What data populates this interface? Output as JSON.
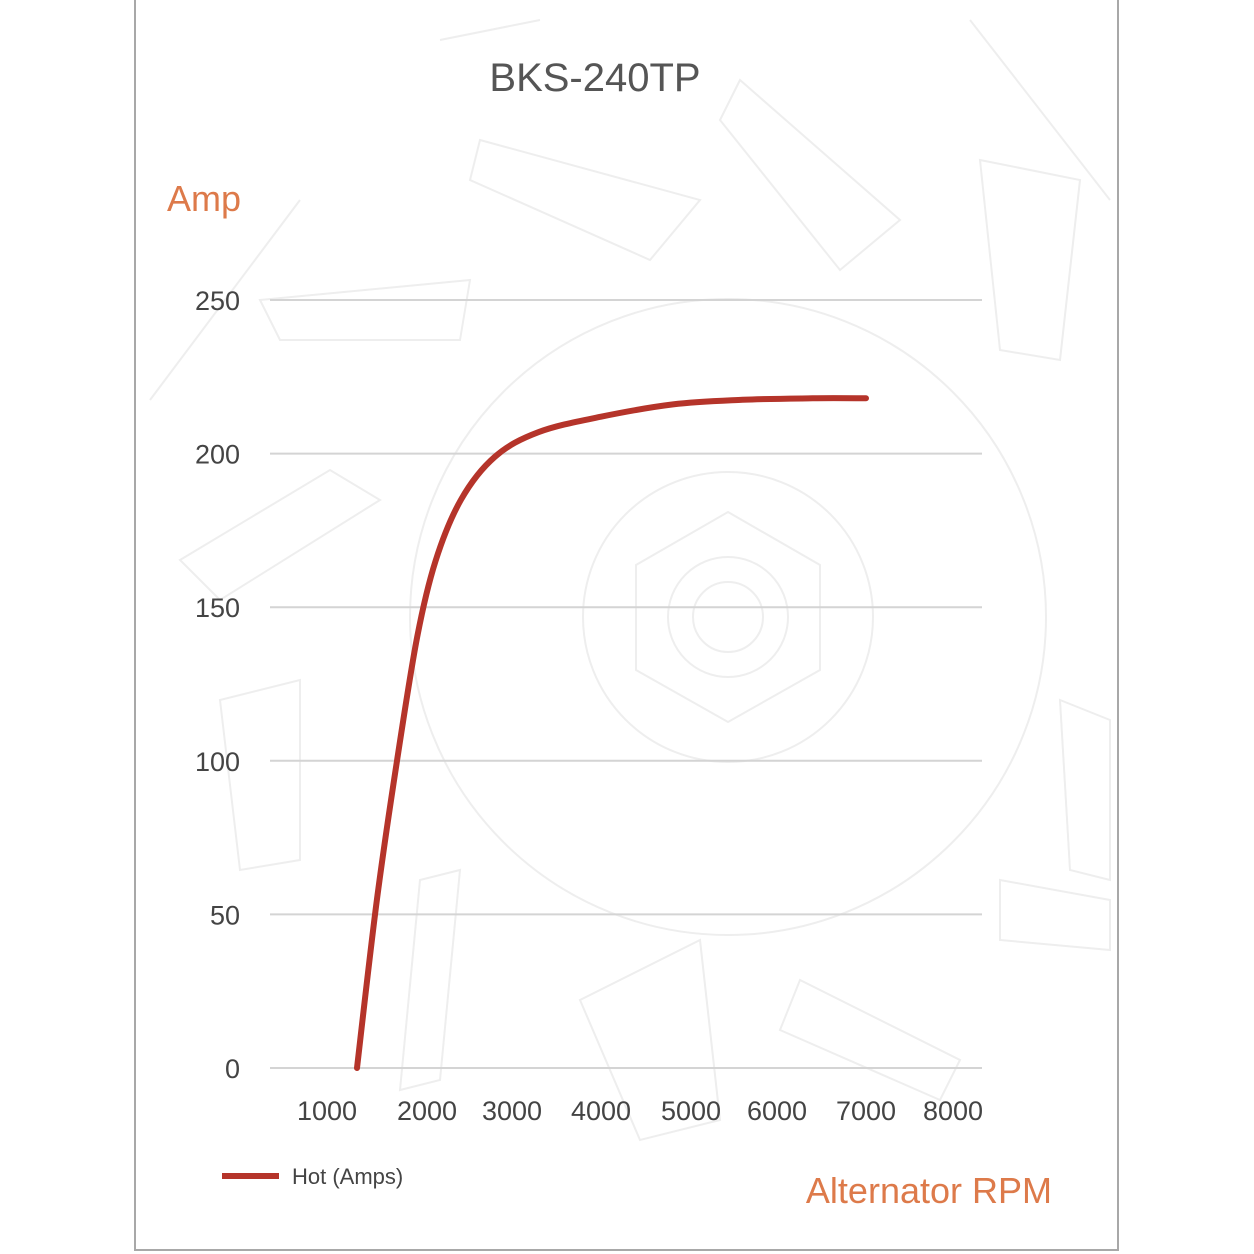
{
  "chart_data": {
    "type": "line",
    "title": "BKS-240TP",
    "ylabel": "Amp",
    "xlabel": "Alternator RPM",
    "y_ticks": [
      0,
      50,
      100,
      150,
      200,
      250
    ],
    "x_ticks": [
      1000,
      2000,
      3000,
      4000,
      5000,
      6000,
      7000,
      8000
    ],
    "ylim": [
      0,
      250
    ],
    "grid": true,
    "legend_position": "bottom-left",
    "series": [
      {
        "name": "Hot (Amps)",
        "color": "#b5342a",
        "points": [
          [
            1300,
            0
          ],
          [
            1500,
            55
          ],
          [
            1700,
            100
          ],
          [
            1900,
            140
          ],
          [
            2100,
            165
          ],
          [
            2400,
            185
          ],
          [
            2800,
            199
          ],
          [
            3300,
            207
          ],
          [
            4000,
            212
          ],
          [
            4800,
            216
          ],
          [
            5600,
            217.5
          ],
          [
            6400,
            218
          ],
          [
            7000,
            218
          ]
        ]
      }
    ]
  }
}
